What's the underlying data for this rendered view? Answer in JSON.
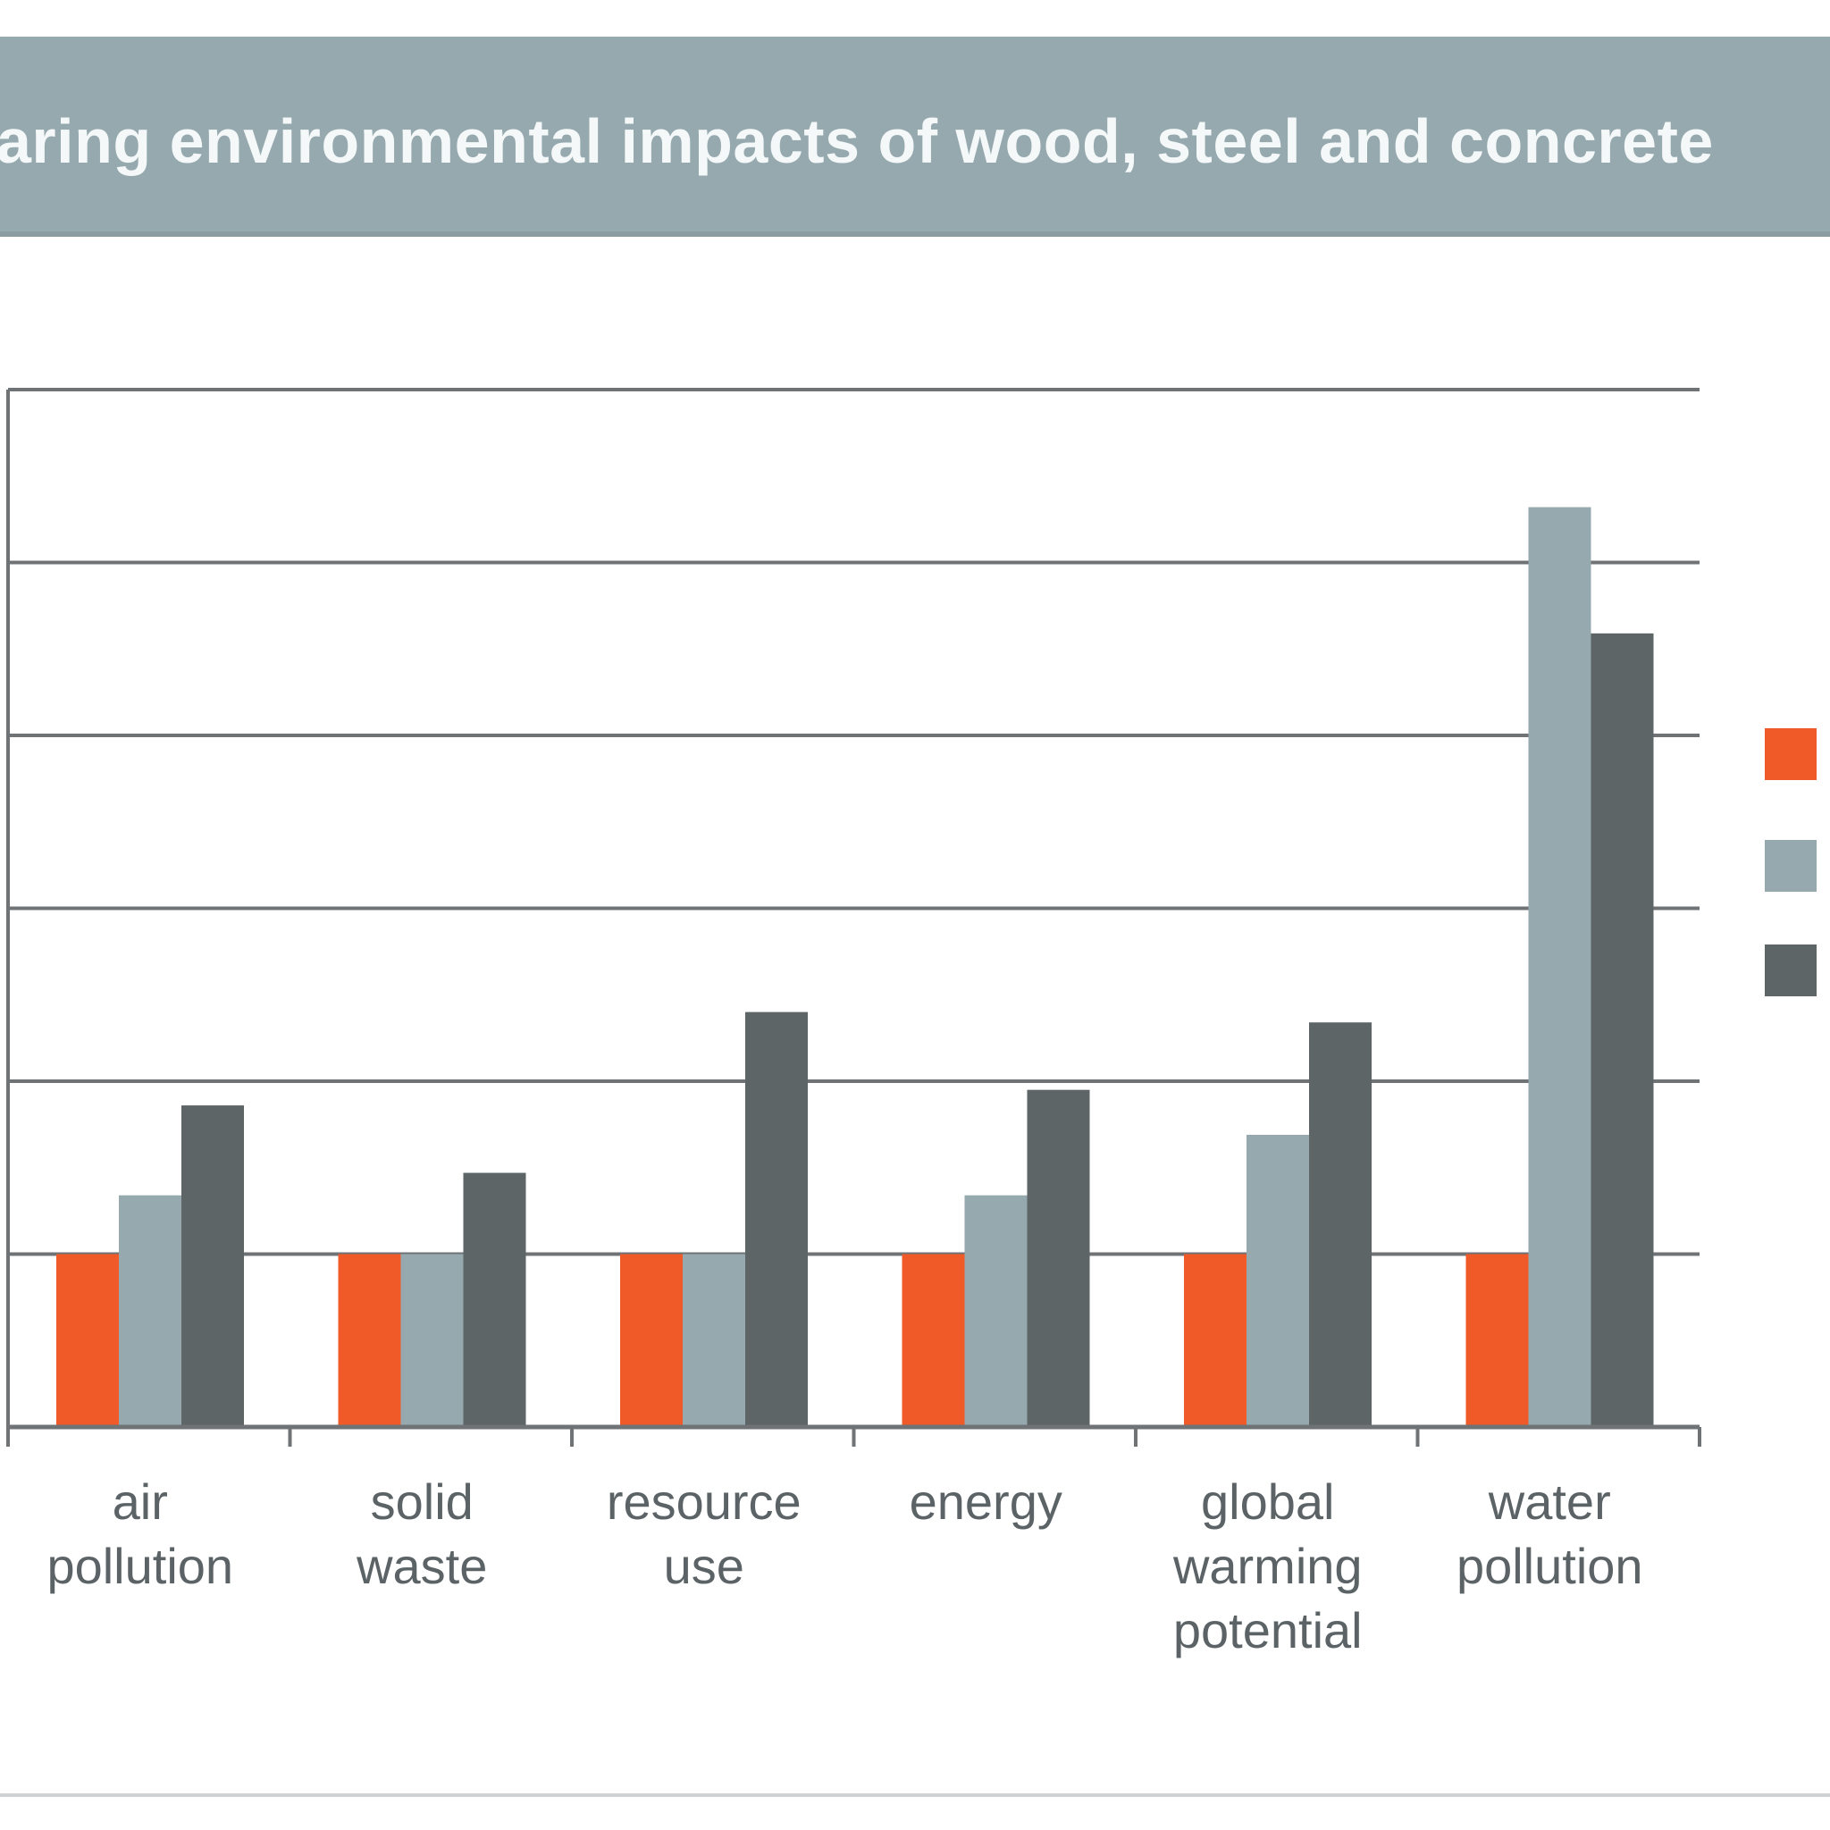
{
  "header": {
    "title": "aring environmental impacts of wood, steel and concrete"
  },
  "chart_data": {
    "type": "bar",
    "title": "aring environmental impacts of wood, steel and concrete",
    "categories": [
      [
        "air",
        "pollution"
      ],
      [
        "solid",
        "waste"
      ],
      [
        "resource",
        "use"
      ],
      [
        "energy"
      ],
      [
        "global",
        "warming",
        "potential"
      ],
      [
        "water",
        "pollution"
      ]
    ],
    "series": [
      {
        "color": "#f05a28",
        "values": [
          1,
          1,
          1,
          1,
          1,
          1
        ]
      },
      {
        "color": "#96a9ae",
        "values": [
          1.34,
          1.0,
          1.0,
          1.34,
          1.69,
          5.32
        ]
      },
      {
        "color": "#5d6567",
        "values": [
          1.86,
          1.47,
          2.4,
          1.95,
          2.34,
          4.59
        ]
      }
    ],
    "ylim": [
      0,
      6
    ],
    "yticks": [
      0,
      1,
      2,
      3,
      4,
      5,
      6
    ],
    "grid": true,
    "legend": "right",
    "xlabel": "",
    "ylabel": ""
  }
}
